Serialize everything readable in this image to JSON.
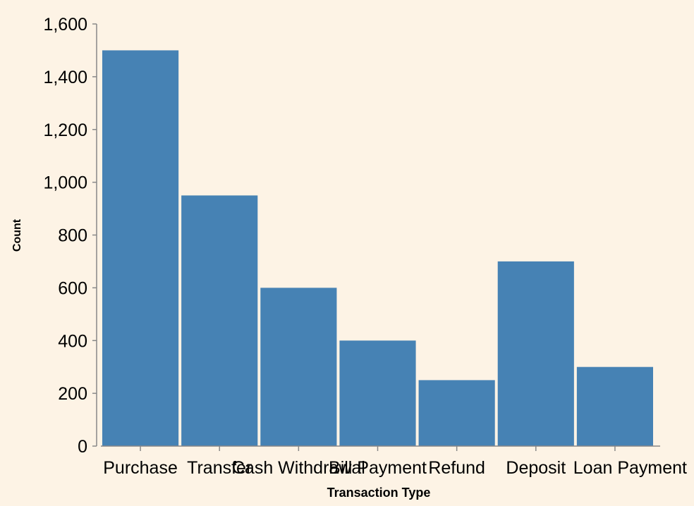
{
  "chart_data": {
    "type": "bar",
    "title": "",
    "xlabel": "Transaction Type",
    "ylabel": "Count",
    "categories": [
      "Purchase",
      "Transfer",
      "Cash Withdrawal",
      "Bill Payment",
      "Refund",
      "Deposit",
      "Loan Payment"
    ],
    "values": [
      1500,
      950,
      600,
      400,
      250,
      700,
      300
    ],
    "ylim": [
      0,
      1600
    ],
    "yticks": [
      0,
      200,
      400,
      600,
      800,
      1000,
      1200,
      1400,
      1600
    ],
    "ytick_labels": [
      "0",
      "200",
      "400",
      "600",
      "800",
      "1,000",
      "1,200",
      "1,400",
      "1,600"
    ],
    "grid": false,
    "colors": {
      "bar": "#4682b4",
      "background": "#fdf3e5",
      "axis": "#888888"
    }
  }
}
